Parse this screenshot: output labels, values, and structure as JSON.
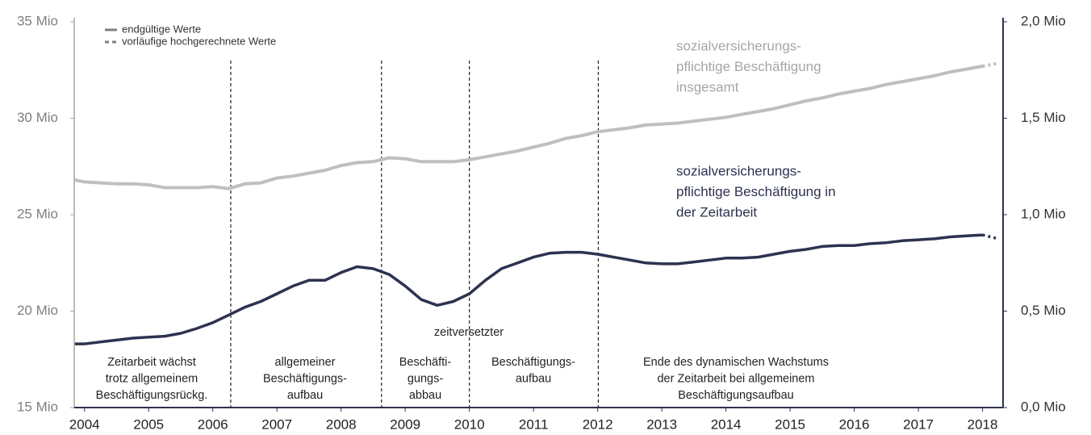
{
  "chart_data": {
    "type": "line",
    "legend": [
      {
        "label": "endgültige Werte",
        "dash": false
      },
      {
        "label": "vorläufige hochgerechnete Werte",
        "dash": true
      }
    ],
    "x": [
      2003.85,
      2004,
      2004.25,
      2004.5,
      2004.75,
      2005,
      2005.25,
      2005.5,
      2005.75,
      2006,
      2006.25,
      2006.5,
      2006.75,
      2007,
      2007.25,
      2007.5,
      2007.75,
      2008,
      2008.25,
      2008.5,
      2008.75,
      2009,
      2009.25,
      2009.5,
      2009.75,
      2010,
      2010.25,
      2010.5,
      2010.75,
      2011,
      2011.25,
      2011.5,
      2011.75,
      2012,
      2012.25,
      2012.5,
      2012.75,
      2013,
      2013.25,
      2013.5,
      2013.75,
      2014,
      2014.25,
      2014.5,
      2014.75,
      2015,
      2015.25,
      2015.5,
      2015.75,
      2016,
      2016.25,
      2016.5,
      2016.75,
      2017,
      2017.25,
      2017.5,
      2017.75,
      2018,
      2018.25
    ],
    "series": [
      {
        "label_lines": [
          "sozialversicherungs-",
          "pflichtige Beschäftigung",
          "insgesamt"
        ],
        "color": "#bfbfbf",
        "label_color": "#a6a6a6",
        "axis": "y",
        "values": [
          26.8,
          26.7,
          26.65,
          26.6,
          26.6,
          26.55,
          26.4,
          26.4,
          26.4,
          26.45,
          26.35,
          26.6,
          26.65,
          26.9,
          27.0,
          27.15,
          27.3,
          27.55,
          27.7,
          27.75,
          27.95,
          27.9,
          27.75,
          27.75,
          27.75,
          27.85,
          28.0,
          28.15,
          28.3,
          28.5,
          28.7,
          28.95,
          29.1,
          29.3,
          29.4,
          29.5,
          29.65,
          29.7,
          29.75,
          29.85,
          29.95,
          30.05,
          30.2,
          30.35,
          30.5,
          30.7,
          30.9,
          31.05,
          31.25,
          31.4,
          31.55,
          31.75,
          31.9,
          32.05,
          32.2,
          32.4,
          32.55,
          32.7,
          null
        ],
        "provisional_values": [
          null,
          null,
          null,
          null,
          null,
          null,
          null,
          null,
          null,
          null,
          null,
          null,
          null,
          null,
          null,
          null,
          null,
          null,
          null,
          null,
          null,
          null,
          null,
          null,
          null,
          null,
          null,
          null,
          null,
          null,
          null,
          null,
          null,
          null,
          null,
          null,
          null,
          null,
          null,
          null,
          null,
          null,
          null,
          null,
          null,
          null,
          null,
          null,
          null,
          null,
          null,
          null,
          null,
          null,
          null,
          null,
          null,
          null,
          32.85
        ]
      },
      {
        "label_lines": [
          "sozialversicherungs-",
          "pflichtige Beschäftigung in",
          "der Zeitarbeit"
        ],
        "color": "#2d3250",
        "label_color": "#2d3250",
        "axis": "y2",
        "values": [
          0.33,
          0.33,
          0.34,
          0.35,
          0.36,
          0.365,
          0.37,
          0.385,
          0.41,
          0.44,
          0.48,
          0.52,
          0.55,
          0.59,
          0.63,
          0.66,
          0.66,
          0.7,
          0.73,
          0.72,
          0.69,
          0.63,
          0.56,
          0.53,
          0.55,
          0.59,
          0.66,
          0.72,
          0.75,
          0.78,
          0.8,
          0.805,
          0.805,
          0.795,
          0.78,
          0.765,
          0.75,
          0.745,
          0.745,
          0.755,
          0.765,
          0.775,
          0.775,
          0.78,
          0.795,
          0.81,
          0.82,
          0.835,
          0.84,
          0.84,
          0.85,
          0.855,
          0.865,
          0.87,
          0.875,
          0.885,
          0.89,
          0.895,
          null
        ],
        "provisional_values": [
          null,
          null,
          null,
          null,
          null,
          null,
          null,
          null,
          null,
          null,
          null,
          null,
          null,
          null,
          null,
          null,
          null,
          null,
          null,
          null,
          null,
          null,
          null,
          null,
          null,
          null,
          null,
          null,
          null,
          null,
          null,
          null,
          null,
          null,
          null,
          null,
          null,
          null,
          null,
          null,
          null,
          null,
          null,
          null,
          null,
          null,
          null,
          null,
          null,
          null,
          null,
          null,
          null,
          null,
          null,
          null,
          null,
          null,
          0.875
        ]
      }
    ],
    "xlim": [
      2003.84,
      2018.32
    ],
    "xticks": [
      2004,
      2005,
      2006,
      2007,
      2008,
      2009,
      2010,
      2011,
      2012,
      2013,
      2014,
      2015,
      2016,
      2017,
      2018
    ],
    "ylim": [
      15,
      35
    ],
    "yticks": [
      {
        "value": 15,
        "label": "15 Mio"
      },
      {
        "value": 20,
        "label": "20 Mio"
      },
      {
        "value": 25,
        "label": "25 Mio"
      },
      {
        "value": 30,
        "label": "30 Mio"
      },
      {
        "value": 35,
        "label": "35 Mio"
      }
    ],
    "y2lim": [
      0,
      2
    ],
    "y2ticks": [
      {
        "value": 0,
        "label": "0,0 Mio"
      },
      {
        "value": 0.5,
        "label": "0,5 Mio"
      },
      {
        "value": 1,
        "label": "1,0 Mio"
      },
      {
        "value": 1.5,
        "label": "1,5 Mio"
      },
      {
        "value": 2,
        "label": "2,0 Mio"
      }
    ],
    "phase_boundaries": [
      2006.28,
      2008.63,
      2010.0,
      2012.01
    ],
    "phases": [
      {
        "label_lines": [
          "Zeitarbeit wächst",
          "trotz allgemeinem",
          "Beschäftigungsrückg."
        ]
      },
      {
        "label_lines": [
          "allgemeiner",
          "Beschäftigungs-",
          "aufbau"
        ]
      },
      {
        "label_lines": [
          "Beschäfti-",
          "gungs-",
          "abbau"
        ]
      },
      {
        "label_lines": [
          "Beschäftigungs-",
          "aufbau"
        ]
      },
      {
        "label_lines": [
          "Ende des dynamischen Wachstums",
          "der Zeitarbeit bei allgemeinem",
          "Beschäftigungsaufbau"
        ]
      }
    ],
    "annotations": [
      {
        "text": "zeitversetzter"
      }
    ]
  }
}
